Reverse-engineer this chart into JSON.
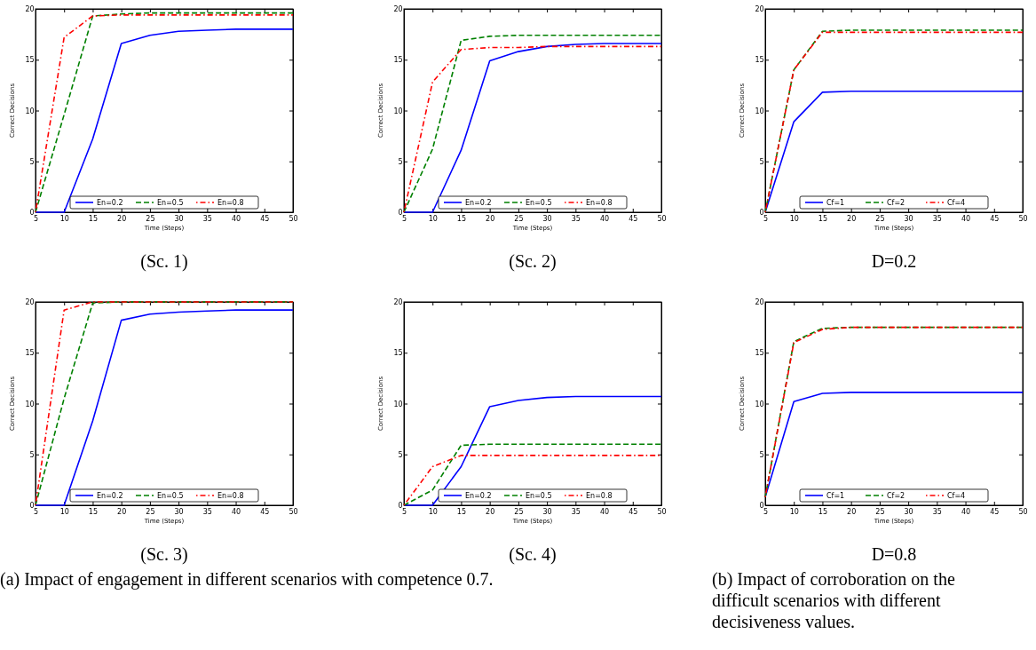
{
  "chart_data": [
    {
      "type": "line",
      "title": "(Sc. 1)",
      "xlabel": "Time (Steps)",
      "ylabel": "Correct Decisions",
      "x": [
        5,
        10,
        15,
        20,
        25,
        30,
        35,
        40,
        45,
        50
      ],
      "xlim": [
        5,
        50
      ],
      "xticks": [
        5,
        10,
        15,
        20,
        25,
        30,
        35,
        40,
        45,
        50
      ],
      "ylim": [
        0,
        20
      ],
      "yticks": [
        0,
        5,
        10,
        15,
        20
      ],
      "legend": "bottom",
      "series": [
        {
          "name": "En=0.2",
          "color": "#0000ff",
          "line_style": "solid",
          "values": [
            0,
            0,
            7.2,
            16.6,
            17.4,
            17.8,
            17.9,
            18,
            18,
            18
          ]
        },
        {
          "name": "En=0.5",
          "color": "#008000",
          "line_style": "dashed",
          "values": [
            0,
            9.6,
            19.3,
            19.5,
            19.6,
            19.6,
            19.6,
            19.6,
            19.6,
            19.6
          ]
        },
        {
          "name": "En=0.8",
          "color": "#ff0000",
          "line_style": "dotted",
          "values": [
            0,
            17.2,
            19.3,
            19.4,
            19.4,
            19.4,
            19.4,
            19.4,
            19.4,
            19.4
          ]
        }
      ]
    },
    {
      "type": "line",
      "title": "(Sc. 2)",
      "xlabel": "Time (Steps)",
      "ylabel": "Correct Decisions",
      "x": [
        5,
        10,
        15,
        20,
        25,
        30,
        35,
        40,
        45,
        50
      ],
      "xlim": [
        5,
        50
      ],
      "xticks": [
        5,
        10,
        15,
        20,
        25,
        30,
        35,
        40,
        45,
        50
      ],
      "ylim": [
        0,
        20
      ],
      "yticks": [
        0,
        5,
        10,
        15,
        20
      ],
      "legend": "bottom",
      "series": [
        {
          "name": "En=0.2",
          "color": "#0000ff",
          "line_style": "solid",
          "values": [
            0,
            0,
            6.1,
            14.9,
            15.8,
            16.3,
            16.5,
            16.6,
            16.6,
            16.6
          ]
        },
        {
          "name": "En=0.5",
          "color": "#008000",
          "line_style": "dashed",
          "values": [
            0,
            6.2,
            16.9,
            17.3,
            17.4,
            17.4,
            17.4,
            17.4,
            17.4,
            17.4
          ]
        },
        {
          "name": "En=0.8",
          "color": "#ff0000",
          "line_style": "dotted",
          "values": [
            0,
            12.8,
            16,
            16.2,
            16.2,
            16.3,
            16.3,
            16.3,
            16.3,
            16.3
          ]
        }
      ]
    },
    {
      "type": "line",
      "title": "D=0.2",
      "xlabel": "Time (Steps)",
      "ylabel": "Correct Decisions",
      "x": [
        5,
        10,
        15,
        20,
        25,
        30,
        35,
        40,
        45,
        50
      ],
      "xlim": [
        5,
        50
      ],
      "xticks": [
        5,
        10,
        15,
        20,
        25,
        30,
        35,
        40,
        45,
        50
      ],
      "ylim": [
        0,
        20
      ],
      "yticks": [
        0,
        5,
        10,
        15,
        20
      ],
      "legend": "bottom",
      "series": [
        {
          "name": "Cf=1",
          "color": "#0000ff",
          "line_style": "solid",
          "values": [
            0,
            8.9,
            11.8,
            11.9,
            11.9,
            11.9,
            11.9,
            11.9,
            11.9,
            11.9
          ]
        },
        {
          "name": "Cf=2",
          "color": "#008000",
          "line_style": "dashed",
          "values": [
            0,
            14,
            17.8,
            17.9,
            17.9,
            17.9,
            17.9,
            17.9,
            17.9,
            17.9
          ]
        },
        {
          "name": "Cf=4",
          "color": "#ff0000",
          "line_style": "dotted",
          "values": [
            0,
            14,
            17.7,
            17.7,
            17.7,
            17.7,
            17.7,
            17.7,
            17.7,
            17.7
          ]
        }
      ]
    },
    {
      "type": "line",
      "title": "(Sc. 3)",
      "xlabel": "Time (Steps)",
      "ylabel": "Correct Decisions",
      "x": [
        5,
        10,
        15,
        20,
        25,
        30,
        35,
        40,
        45,
        50
      ],
      "xlim": [
        5,
        50
      ],
      "xticks": [
        5,
        10,
        15,
        20,
        25,
        30,
        35,
        40,
        45,
        50
      ],
      "ylim": [
        0,
        20
      ],
      "yticks": [
        0,
        5,
        10,
        15,
        20
      ],
      "legend": "bottom",
      "annotations": [
        "(a) Impact of engagement in different scenarios with competence 0.7."
      ],
      "series": [
        {
          "name": "En=0.2",
          "color": "#0000ff",
          "line_style": "solid",
          "values": [
            0,
            0,
            8.3,
            18.2,
            18.8,
            19,
            19.1,
            19.2,
            19.2,
            19.2
          ]
        },
        {
          "name": "En=0.5",
          "color": "#008000",
          "line_style": "dashed",
          "values": [
            0,
            10.5,
            19.9,
            20,
            20,
            20,
            20,
            20,
            20,
            20
          ]
        },
        {
          "name": "En=0.8",
          "color": "#ff0000",
          "line_style": "dotted",
          "values": [
            0,
            19.2,
            20,
            20,
            20,
            20,
            20,
            20,
            20,
            20
          ]
        }
      ]
    },
    {
      "type": "line",
      "title": "(Sc. 4)",
      "xlabel": "Time (Steps)",
      "ylabel": "Correct Decisions",
      "x": [
        5,
        10,
        15,
        20,
        25,
        30,
        35,
        40,
        45,
        50
      ],
      "xlim": [
        5,
        50
      ],
      "xticks": [
        5,
        10,
        15,
        20,
        25,
        30,
        35,
        40,
        45,
        50
      ],
      "ylim": [
        0,
        20
      ],
      "yticks": [
        0,
        5,
        10,
        15,
        20
      ],
      "legend": "bottom",
      "series": [
        {
          "name": "En=0.2",
          "color": "#0000ff",
          "line_style": "solid",
          "values": [
            0,
            0,
            3.8,
            9.7,
            10.3,
            10.6,
            10.7,
            10.7,
            10.7,
            10.7
          ]
        },
        {
          "name": "En=0.5",
          "color": "#008000",
          "line_style": "dashed",
          "values": [
            0,
            1.5,
            5.9,
            6,
            6,
            6,
            6,
            6,
            6,
            6
          ]
        },
        {
          "name": "En=0.8",
          "color": "#ff0000",
          "line_style": "dotted",
          "values": [
            0,
            3.8,
            4.9,
            4.9,
            4.9,
            4.9,
            4.9,
            4.9,
            4.9,
            4.9
          ]
        }
      ]
    },
    {
      "type": "line",
      "title": "D=0.8",
      "xlabel": "Time (Steps)",
      "ylabel": "Correct Decisions",
      "x": [
        5,
        10,
        15,
        20,
        25,
        30,
        35,
        40,
        45,
        50
      ],
      "xlim": [
        5,
        50
      ],
      "xticks": [
        5,
        10,
        15,
        20,
        25,
        30,
        35,
        40,
        45,
        50
      ],
      "ylim": [
        0,
        20
      ],
      "yticks": [
        0,
        5,
        10,
        15,
        20
      ],
      "legend": "bottom",
      "annotations": [
        "(b) Impact of corroboration on the difficult scenarios with different decisiveness values."
      ],
      "series": [
        {
          "name": "Cf=1",
          "color": "#0000ff",
          "line_style": "solid",
          "values": [
            0.8,
            10.2,
            11,
            11.1,
            11.1,
            11.1,
            11.1,
            11.1,
            11.1,
            11.1
          ]
        },
        {
          "name": "Cf=2",
          "color": "#008000",
          "line_style": "dashed",
          "values": [
            0.8,
            16.1,
            17.4,
            17.5,
            17.5,
            17.5,
            17.5,
            17.5,
            17.5,
            17.5
          ]
        },
        {
          "name": "Cf=4",
          "color": "#ff0000",
          "line_style": "dotted",
          "values": [
            0.8,
            16,
            17.3,
            17.5,
            17.5,
            17.5,
            17.5,
            17.5,
            17.5,
            17.5
          ]
        }
      ]
    }
  ]
}
